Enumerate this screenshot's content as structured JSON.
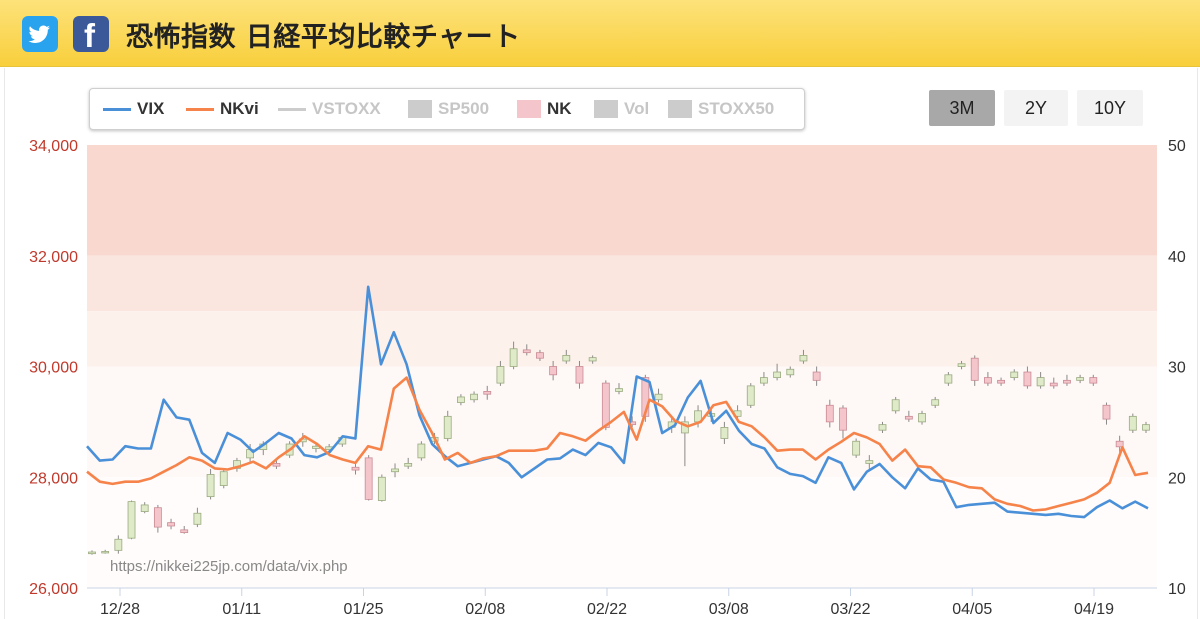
{
  "header": {
    "title": "恐怖指数 日経平均比較チャート",
    "twitter_icon": "twitter-icon",
    "facebook_icon": "facebook-icon",
    "facebook_glyph": "f"
  },
  "legend": [
    {
      "label": "VIX",
      "kind": "line",
      "color": "#4a90d9",
      "active": true
    },
    {
      "label": "NKvi",
      "kind": "line",
      "color": "#f5834a",
      "active": true
    },
    {
      "label": "VSTOXX",
      "kind": "line",
      "color": "#cccccc",
      "active": false
    },
    {
      "label": "SP500",
      "kind": "box",
      "color": "#cccccc",
      "active": false
    },
    {
      "label": "NK",
      "kind": "box",
      "color": "#f4c6cc",
      "active": true
    },
    {
      "label": "Vol",
      "kind": "box",
      "color": "#cccccc",
      "active": false
    },
    {
      "label": "STOXX50",
      "kind": "box",
      "color": "#cccccc",
      "active": false
    }
  ],
  "range_buttons": [
    {
      "label": "3M",
      "active": true
    },
    {
      "label": "2Y",
      "active": false
    },
    {
      "label": "10Y",
      "active": false
    }
  ],
  "watermark": "https://nikkei225jp.com/data/vix.php",
  "chart_data": {
    "type": "line",
    "x_ticks": [
      "12/28",
      "01/11",
      "01/25",
      "02/08",
      "02/22",
      "03/08",
      "03/22",
      "04/05",
      "04/19"
    ],
    "y_left": {
      "ticks": [
        "26,000",
        "28,000",
        "30,000",
        "32,000",
        "34,000"
      ],
      "range": [
        26000,
        34000
      ],
      "color": "#c0392b"
    },
    "y_right": {
      "ticks": [
        "10",
        "20",
        "30",
        "40",
        "50"
      ],
      "range": [
        10,
        50
      ]
    },
    "bands": [
      {
        "from": 40,
        "to": 50,
        "color": "#f9d9cf"
      },
      {
        "from": 35,
        "to": 40,
        "color": "#fbe6df"
      },
      {
        "from": 30,
        "to": 35,
        "color": "#fdf1ec"
      },
      {
        "from": 20,
        "to": 30,
        "color": "#fef8f6"
      },
      {
        "from": 10,
        "to": 20,
        "color": "#fffcfb"
      }
    ],
    "series": [
      {
        "name": "VIX",
        "color": "#4a90d9",
        "axis": "right",
        "values": [
          22.8,
          21.5,
          21.6,
          22.8,
          22.6,
          22.6,
          27.0,
          25.4,
          25.2,
          22.2,
          21.3,
          24.0,
          23.4,
          22.3,
          23.1,
          24.0,
          23.5,
          22.0,
          21.8,
          22.3,
          23.7,
          23.5,
          37.2,
          30.2,
          33.1,
          30.2,
          25.6,
          23.0,
          21.9,
          21.0,
          21.3,
          21.6,
          21.9,
          21.3,
          20.0,
          20.8,
          21.6,
          21.7,
          22.5,
          22.0,
          23.1,
          22.7,
          21.3,
          29.1,
          28.6,
          24.0,
          24.7,
          27.2,
          28.7,
          24.9,
          26.0,
          24.2,
          23.0,
          22.6,
          20.9,
          20.3,
          20.1,
          19.5,
          21.8,
          21.3,
          18.9,
          20.5,
          21.2,
          20.0,
          19.0,
          20.8,
          19.8,
          19.6,
          17.3,
          17.5,
          17.6,
          17.7,
          16.9,
          16.8,
          16.7,
          16.6,
          16.7,
          16.5,
          16.4,
          17.3,
          17.9,
          17.2,
          17.8,
          17.2
        ]
      },
      {
        "name": "NKvi",
        "color": "#f5834a",
        "axis": "right",
        "values": [
          20.5,
          19.6,
          19.4,
          19.6,
          19.6,
          19.9,
          20.5,
          21.1,
          21.8,
          21.5,
          20.8,
          20.7,
          21.0,
          21.4,
          20.8,
          21.8,
          22.6,
          23.7,
          23.0,
          22.0,
          21.6,
          21.3,
          22.8,
          22.5,
          28.0,
          29.0,
          26.1,
          24.0,
          21.6,
          22.2,
          21.3,
          21.7,
          21.9,
          22.4,
          22.4,
          22.4,
          22.6,
          24.0,
          23.7,
          23.3,
          24.2,
          25.0,
          25.9,
          23.4,
          27.0,
          26.4,
          25.1,
          24.6,
          25.0,
          26.5,
          26.8,
          25.0,
          24.6,
          23.6,
          22.4,
          22.5,
          22.5,
          21.6,
          22.5,
          23.2,
          24.0,
          23.6,
          23.0,
          21.5,
          22.5,
          21.0,
          20.9,
          19.8,
          19.5,
          19.1,
          19.0,
          18.0,
          17.6,
          17.4,
          17.0,
          17.1,
          17.4,
          17.7,
          18.0,
          18.6,
          19.5,
          22.7,
          20.2,
          20.4
        ]
      }
    ],
    "candles": {
      "name": "NK",
      "axis": "left",
      "up_color": "#dfeac9",
      "down_color": "#f4c6cc",
      "ohlc": [
        [
          26620,
          26650,
          26600,
          26680
        ],
        [
          26640,
          26660,
          26620,
          26690
        ],
        [
          26680,
          26880,
          26620,
          26950
        ],
        [
          26900,
          27560,
          26880,
          27580
        ],
        [
          27380,
          27500,
          27350,
          27550
        ],
        [
          27450,
          27100,
          27000,
          27500
        ],
        [
          27180,
          27120,
          27060,
          27250
        ],
        [
          27050,
          27000,
          26980,
          27120
        ],
        [
          27150,
          27350,
          27100,
          27450
        ],
        [
          27650,
          28050,
          27600,
          28150
        ],
        [
          27850,
          28100,
          27800,
          28150
        ],
        [
          28160,
          28300,
          28100,
          28350
        ],
        [
          28350,
          28500,
          28250,
          28600
        ],
        [
          28500,
          28600,
          28400,
          28650
        ],
        [
          28250,
          28200,
          28150,
          28300
        ],
        [
          28400,
          28600,
          28350,
          28650
        ],
        [
          28640,
          28690,
          28550,
          28800
        ],
        [
          28520,
          28560,
          28450,
          28620
        ],
        [
          28500,
          28550,
          28420,
          28600
        ],
        [
          28600,
          28720,
          28550,
          28750
        ],
        [
          28180,
          28130,
          28050,
          28260
        ],
        [
          28350,
          27600,
          27580,
          28400
        ],
        [
          27580,
          28000,
          27560,
          28050
        ],
        [
          28100,
          28150,
          28000,
          28250
        ],
        [
          28200,
          28250,
          28150,
          28350
        ],
        [
          28350,
          28600,
          28300,
          28650
        ],
        [
          28650,
          28720,
          28600,
          28800
        ],
        [
          28700,
          29100,
          28650,
          29200
        ],
        [
          29350,
          29450,
          29300,
          29500
        ],
        [
          29400,
          29500,
          29350,
          29550
        ],
        [
          29550,
          29500,
          29400,
          29650
        ],
        [
          29700,
          30000,
          29650,
          30100
        ],
        [
          30000,
          30320,
          29950,
          30450
        ],
        [
          30300,
          30250,
          30200,
          30400
        ],
        [
          30250,
          30150,
          30100,
          30300
        ],
        [
          30000,
          29850,
          29750,
          30100
        ],
        [
          30100,
          30200,
          30050,
          30300
        ],
        [
          30000,
          29700,
          29600,
          30100
        ],
        [
          30100,
          30160,
          30050,
          30200
        ],
        [
          29700,
          28900,
          28850,
          29750
        ],
        [
          29550,
          29600,
          29500,
          29700
        ],
        [
          29000,
          28950,
          28900,
          29100
        ],
        [
          29800,
          29100,
          29000,
          29850
        ],
        [
          29400,
          29500,
          29350,
          29600
        ],
        [
          28900,
          29000,
          28800,
          29100
        ],
        [
          28800,
          29000,
          28200,
          29100
        ],
        [
          29000,
          29200,
          28900,
          29300
        ],
        [
          29100,
          29150,
          29000,
          29250
        ],
        [
          28700,
          28900,
          28600,
          29000
        ],
        [
          29100,
          29200,
          29000,
          29300
        ],
        [
          29300,
          29650,
          29250,
          29700
        ],
        [
          29700,
          29800,
          29650,
          29900
        ],
        [
          29800,
          29900,
          29750,
          30050
        ],
        [
          29850,
          29950,
          29800,
          30000
        ],
        [
          30100,
          30200,
          30050,
          30300
        ],
        [
          29900,
          29750,
          29650,
          30000
        ],
        [
          29300,
          29000,
          28900,
          29400
        ],
        [
          29250,
          28850,
          28700,
          29300
        ],
        [
          28400,
          28650,
          28350,
          28700
        ],
        [
          28250,
          28300,
          28150,
          28400
        ],
        [
          28850,
          28950,
          28800,
          29000
        ],
        [
          29200,
          29400,
          29150,
          29450
        ],
        [
          29100,
          29050,
          29000,
          29200
        ],
        [
          29000,
          29150,
          28950,
          29200
        ],
        [
          29300,
          29400,
          29250,
          29450
        ],
        [
          29700,
          29850,
          29650,
          29900
        ],
        [
          30000,
          30050,
          29950,
          30100
        ],
        [
          30150,
          29750,
          29650,
          30200
        ],
        [
          29800,
          29700,
          29650,
          29900
        ],
        [
          29750,
          29700,
          29650,
          29800
        ],
        [
          29800,
          29900,
          29750,
          29950
        ],
        [
          29900,
          29650,
          29600,
          30000
        ],
        [
          29650,
          29800,
          29600,
          29900
        ],
        [
          29700,
          29650,
          29600,
          29800
        ],
        [
          29750,
          29700,
          29650,
          29850
        ],
        [
          29750,
          29800,
          29700,
          29850
        ],
        [
          29800,
          29700,
          29650,
          29850
        ],
        [
          29300,
          29050,
          28950,
          29350
        ],
        [
          28650,
          28550,
          28450,
          28750
        ],
        [
          28850,
          29100,
          28800,
          29150
        ],
        [
          28850,
          28950,
          28800,
          29000
        ]
      ]
    }
  }
}
